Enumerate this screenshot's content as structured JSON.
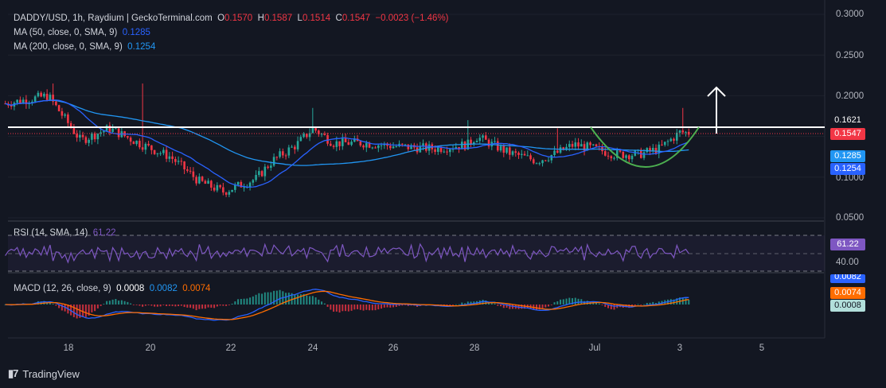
{
  "header": {
    "symbol": "DADDY/USD, 1h, Raydium | GeckoTerminal.com",
    "o_label": "O",
    "o_value": "0.1570",
    "h_label": "H",
    "h_value": "0.1587",
    "l_label": "L",
    "l_value": "0.1514",
    "c_label": "C",
    "c_value": "0.1547",
    "change": "−0.0023 (−1.46%)"
  },
  "ma50": {
    "label": "MA (50, close, 0, SMA, 9)",
    "value": "0.1285"
  },
  "ma200": {
    "label": "MA (200, close, 0, SMA, 9)",
    "value": "0.1254"
  },
  "price_axis": {
    "ticks": [
      "0.3000",
      "0.2500",
      "0.2000",
      "0.1000",
      "0.0500"
    ],
    "tags": {
      "resistance": "0.1621",
      "last": "0.1547",
      "ma50": "0.1285",
      "ma200": "0.1254"
    }
  },
  "rsi": {
    "label": "RSI (14, SMA, 14)",
    "value": "61.22",
    "axis_value": "61.22",
    "axis_tick": "40.00"
  },
  "macd": {
    "label": "MACD (12, 26, close, 9)",
    "hist": "0.0008",
    "macd": "0.0082",
    "signal": "0.0074",
    "tags": {
      "macd": "0.0082",
      "signal": "0.0074",
      "hist": "0.0008"
    }
  },
  "time_axis": [
    "18",
    "20",
    "22",
    "24",
    "26",
    "28",
    "Jul",
    "3",
    "5"
  ],
  "branding": {
    "name": "TradingView"
  },
  "colors": {
    "up": "#26a69a",
    "down": "#f23645",
    "ma50": "#2962ff",
    "ma200": "#2196f3",
    "rsi": "#7e57c2",
    "macd": "#2962ff",
    "signal": "#ff6d00",
    "resistance": "#ffffff",
    "cup": "#4caf50",
    "arrow": "#ffffff"
  },
  "chart_data": {
    "type": "candlestick",
    "title": "DADDY/USD, 1h, Raydium",
    "x": [
      "18",
      "20",
      "22",
      "24",
      "26",
      "28",
      "Jul",
      "3",
      "5"
    ],
    "ylim": [
      0.05,
      0.3
    ],
    "horizontal_line": 0.1621,
    "series": [
      {
        "name": "MA (50, close, 0, SMA, 9)",
        "last": 0.1285
      },
      {
        "name": "MA (200, close, 0, SMA, 9)",
        "last": 0.1254
      }
    ],
    "price_anchor_days": [
      16.4,
      17.5,
      18.3,
      19,
      19.8,
      20.5,
      21.2,
      21.8,
      22.6,
      23,
      23.6,
      24,
      24.5,
      25.2,
      26,
      27,
      27.8,
      28,
      28.8,
      29.5,
      30,
      30.4,
      30.9,
      31.4,
      32,
      32.5,
      33,
      33.2
    ],
    "price_anchor_values": [
      0.19,
      0.2,
      0.145,
      0.16,
      0.14,
      0.125,
      0.095,
      0.082,
      0.098,
      0.12,
      0.14,
      0.16,
      0.142,
      0.142,
      0.138,
      0.135,
      0.14,
      0.15,
      0.13,
      0.12,
      0.13,
      0.14,
      0.135,
      0.128,
      0.128,
      0.135,
      0.155,
      0.1547
    ]
  }
}
